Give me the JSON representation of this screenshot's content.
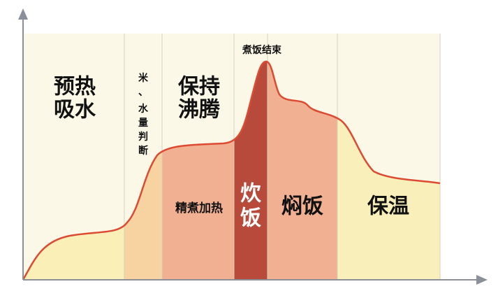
{
  "phases": [
    {
      "label": [
        "预热",
        "吸水"
      ]
    },
    {
      "label": [
        "米",
        "、",
        "水",
        "量",
        "判",
        "断"
      ]
    },
    {
      "label": [
        "保持",
        "沸腾"
      ],
      "sublabel": "精煮加热"
    },
    {
      "label": [
        "炊",
        "饭"
      ],
      "top_label": "煮饭结束"
    },
    {
      "label": [
        "焖饭"
      ]
    },
    {
      "label": [
        "保温"
      ]
    }
  ]
}
